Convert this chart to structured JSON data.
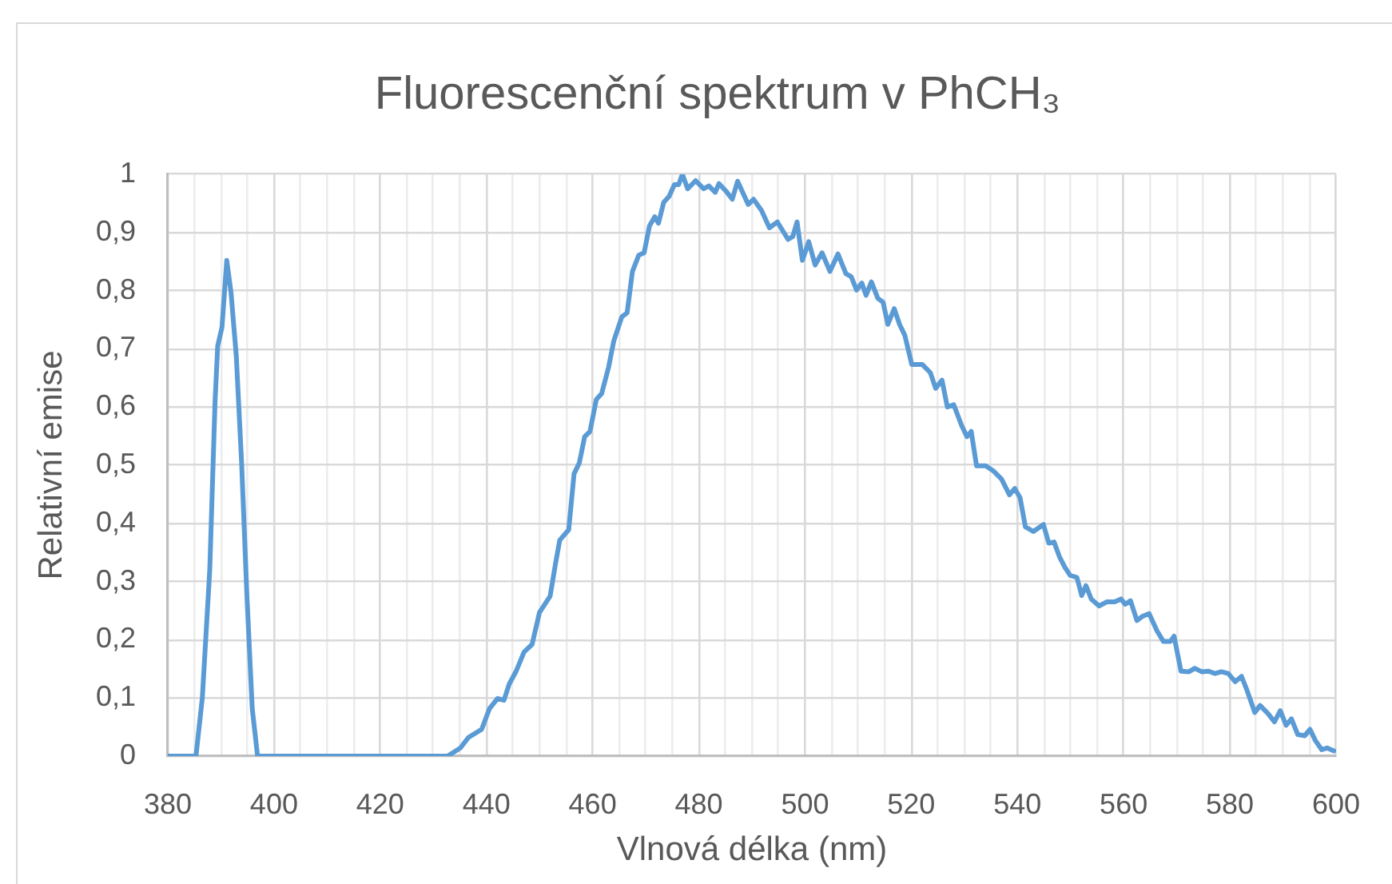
{
  "chart_data": {
    "type": "line",
    "title": "Fluorescenční spektrum v PhCH₃",
    "xlabel": "Vlnová délka (nm)",
    "ylabel": "Relativní emise",
    "color": "#5b9bd5",
    "grid": true,
    "xlim": [
      380,
      600
    ],
    "xticks": [
      380,
      {
        "value": 385,
        "label": null
      },
      {
        "value": 390,
        "label": null
      },
      {
        "value": 395,
        "label": null
      },
      400,
      {
        "value": 405,
        "label": null
      },
      {
        "value": 410,
        "label": null
      },
      {
        "value": 415,
        "label": null
      },
      420,
      {
        "value": 425,
        "label": null
      },
      {
        "value": 430,
        "label": null
      },
      {
        "value": 435,
        "label": null
      },
      440,
      {
        "value": 445,
        "label": null
      },
      {
        "value": 450,
        "label": null
      },
      {
        "value": 455,
        "label": null
      },
      460,
      {
        "value": 465,
        "label": null
      },
      {
        "value": 470,
        "label": null
      },
      {
        "value": 475,
        "label": null
      },
      480,
      {
        "value": 485,
        "label": null
      },
      {
        "value": 490,
        "label": null
      },
      {
        "value": 495,
        "label": null
      },
      500,
      {
        "value": 505,
        "label": null
      },
      {
        "value": 510,
        "label": null
      },
      {
        "value": 515,
        "label": null
      },
      520,
      {
        "value": 525,
        "label": null
      },
      {
        "value": 530,
        "label": null
      },
      {
        "value": 535,
        "label": null
      },
      540,
      {
        "value": 545,
        "label": null
      },
      {
        "value": 550,
        "label": null
      },
      {
        "value": 555,
        "label": null
      },
      560,
      {
        "value": 565,
        "label": null
      },
      {
        "value": 570,
        "label": null
      },
      {
        "value": 575,
        "label": null
      },
      580,
      {
        "value": 585,
        "label": null
      },
      {
        "value": 590,
        "label": null
      },
      {
        "value": 595,
        "label": null
      },
      600
    ],
    "ylim": [
      0,
      1
    ],
    "yticks": [
      0,
      {
        "value": 0.1,
        "label": "0,1"
      },
      {
        "value": 0.2,
        "label": "0,2"
      },
      {
        "value": 0.3,
        "label": "0,3"
      },
      {
        "value": 0.4,
        "label": "0,4"
      },
      {
        "value": 0.5,
        "label": "0,5"
      },
      {
        "value": 0.6,
        "label": "0,6"
      },
      {
        "value": 0.7,
        "label": "0,7"
      },
      {
        "value": 0.8,
        "label": "0,8"
      },
      {
        "value": 0.9,
        "label": "0,9"
      },
      1
    ],
    "x": [
      380,
      385.3,
      386.5,
      387.9,
      388.9,
      389.4,
      390.2,
      391.1,
      391.9,
      392.9,
      393.9,
      394.9,
      395.9,
      396.9,
      432.7,
      435.1,
      436.6,
      439.1,
      440.6,
      442.1,
      443.3,
      444.3,
      445.6,
      447.1,
      448.6,
      450.0,
      452.0,
      453.0,
      453.8,
      455.5,
      456.5,
      457.5,
      458.5,
      459.5,
      460.7,
      461.7,
      463.0,
      464.0,
      465.5,
      466.5,
      467.5,
      468.7,
      469.7,
      470.7,
      471.7,
      472.4,
      473.4,
      474.4,
      475.4,
      476.2,
      476.9,
      477.9,
      479.4,
      480.9,
      481.9,
      483.1,
      483.8,
      485.3,
      486.3,
      487.3,
      489.3,
      490.3,
      491.8,
      493.3,
      494.8,
      496.8,
      497.7,
      498.5,
      499.5,
      500.7,
      501.9,
      503.2,
      504.7,
      506.2,
      507.7,
      508.7,
      509.7,
      510.7,
      511.5,
      512.5,
      513.7,
      514.7,
      515.6,
      516.8,
      517.8,
      518.8,
      520.1,
      522.1,
      523.6,
      524.6,
      525.8,
      526.8,
      528.0,
      529.5,
      530.5,
      531.3,
      532.3,
      534.0,
      535.5,
      537.0,
      538.5,
      539.5,
      540.5,
      541.5,
      543.0,
      544.9,
      545.9,
      546.9,
      547.9,
      548.9,
      549.9,
      551.2,
      552.1,
      552.9,
      553.9,
      555.4,
      556.8,
      558.3,
      559.5,
      560.3,
      561.3,
      562.5,
      563.5,
      564.8,
      566.3,
      567.5,
      568.8,
      569.5,
      570.8,
      572.3,
      573.4,
      574.7,
      576.0,
      577.2,
      578.4,
      579.7,
      581.0,
      582.2,
      583.2,
      584.7,
      585.7,
      587.2,
      588.4,
      589.5,
      590.6,
      591.6,
      592.8,
      594.1,
      595.1,
      596.1,
      597.3,
      598.3,
      599.6
    ],
    "values": [
      0,
      0,
      0.1,
      0.32,
      0.61,
      0.705,
      0.737,
      0.852,
      0.797,
      0.687,
      0.504,
      0.275,
      0.082,
      0,
      0,
      0.014,
      0.032,
      0.046,
      0.082,
      0.099,
      0.096,
      0.124,
      0.146,
      0.179,
      0.192,
      0.247,
      0.275,
      0.33,
      0.371,
      0.389,
      0.485,
      0.504,
      0.549,
      0.558,
      0.613,
      0.623,
      0.668,
      0.714,
      0.755,
      0.762,
      0.833,
      0.861,
      0.865,
      0.911,
      0.927,
      0.916,
      0.952,
      0.962,
      0.982,
      0.982,
      1.0,
      0.975,
      0.989,
      0.975,
      0.98,
      0.969,
      0.984,
      0.969,
      0.957,
      0.988,
      0.948,
      0.957,
      0.938,
      0.908,
      0.918,
      0.888,
      0.893,
      0.918,
      0.852,
      0.884,
      0.844,
      0.865,
      0.833,
      0.863,
      0.829,
      0.824,
      0.801,
      0.813,
      0.792,
      0.815,
      0.787,
      0.78,
      0.742,
      0.769,
      0.742,
      0.723,
      0.673,
      0.673,
      0.659,
      0.632,
      0.646,
      0.6,
      0.604,
      0.568,
      0.549,
      0.558,
      0.499,
      0.499,
      0.49,
      0.476,
      0.449,
      0.46,
      0.444,
      0.394,
      0.386,
      0.398,
      0.366,
      0.368,
      0.343,
      0.325,
      0.311,
      0.307,
      0.276,
      0.293,
      0.27,
      0.258,
      0.265,
      0.265,
      0.27,
      0.261,
      0.267,
      0.233,
      0.24,
      0.245,
      0.215,
      0.197,
      0.197,
      0.206,
      0.146,
      0.145,
      0.151,
      0.145,
      0.146,
      0.142,
      0.145,
      0.142,
      0.128,
      0.137,
      0.114,
      0.075,
      0.087,
      0.073,
      0.059,
      0.078,
      0.053,
      0.064,
      0.037,
      0.035,
      0.046,
      0.027,
      0.011,
      0.014,
      0.009
    ]
  }
}
